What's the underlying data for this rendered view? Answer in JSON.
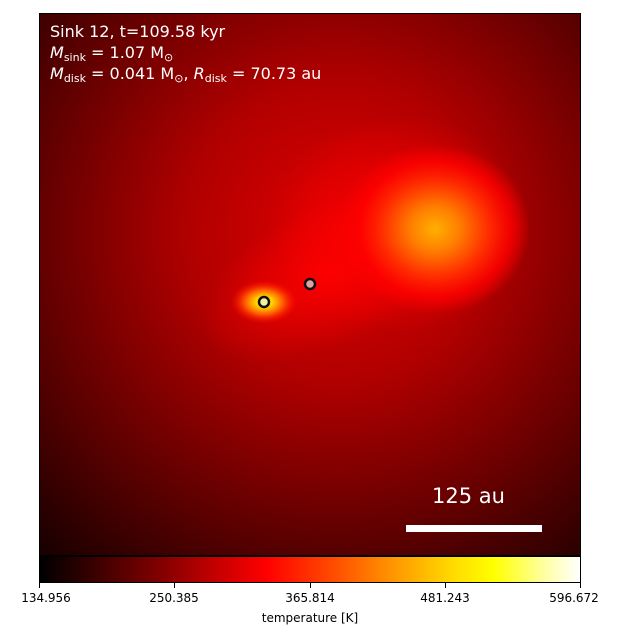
{
  "annotation": {
    "line1": "Sink 12, t=109.58 kyr",
    "m_sink_symbol": "M",
    "m_sink_sub": "sink",
    "m_sink_value": " = 1.07 M",
    "m_sink_unit_sub": "⊙",
    "m_disk_symbol": "M",
    "m_disk_sub": "disk",
    "m_disk_value": " = 0.041 M",
    "m_disk_unit_sub": "⊙",
    "r_disk_symbol": "R",
    "r_disk_sub": "disk",
    "r_disk_value": " = 70.73 au"
  },
  "scale_bar": {
    "label": "125 au"
  },
  "colorbar": {
    "label": "temperature [K]",
    "colormap": "hot",
    "ticks": [
      "134.956",
      "250.385",
      "365.814",
      "481.243",
      "596.672"
    ]
  },
  "sinks": [
    {
      "fill": "#f0f0a0",
      "edge": "#111111"
    },
    {
      "fill": "#e0a0a0",
      "edge": "#111111"
    }
  ]
}
